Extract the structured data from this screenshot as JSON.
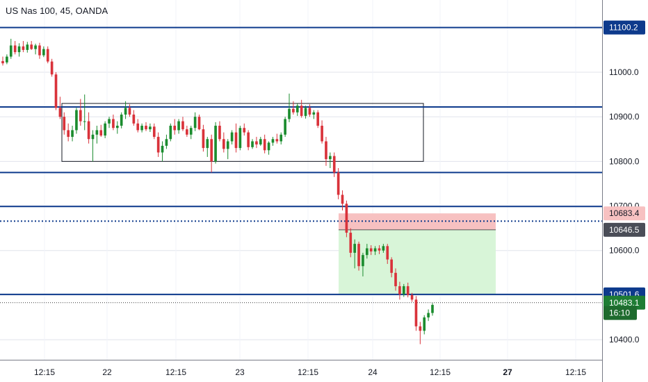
{
  "header": {
    "title": "US Nas 100, 45, OANDA"
  },
  "colors": {
    "up": "#26a69a",
    "up_candle": "#1b8c2e",
    "down": "#d9323a",
    "level_line": "#0d3a8c",
    "grid": "#e0e3eb",
    "stop_zone": "#f7c1c1",
    "target_zone": "#d8f5d8",
    "box": "#131722",
    "countdown_bg": "#1e6b2e"
  },
  "chart_data": {
    "type": "candlestick",
    "ylim": [
      10355,
      11162
    ],
    "price_ticks": [
      "10400.0",
      "10500.0",
      "10600.0",
      "10700.0",
      "10800.0",
      "10900.0",
      "11000.0"
    ],
    "time_ticks": [
      "12:15",
      "22",
      "12:15",
      "23",
      "12:15",
      "24",
      "12:15",
      "27",
      "12:15"
    ],
    "tags": [
      {
        "label": "11100.2",
        "value": 11100.2,
        "style": "blue"
      },
      {
        "label": "10683.4",
        "value": 10683.4,
        "style": "red"
      },
      {
        "label": "10646.5",
        "value": 10646.5,
        "style": "gray"
      },
      {
        "label": "10501.6",
        "value": 10501.6,
        "style": "blue"
      },
      {
        "label": "10483.1",
        "value": 10483.1,
        "style": "green"
      },
      {
        "label": "16:10",
        "value": 10460,
        "style": "countdown"
      }
    ],
    "horizontal_levels": [
      11100.2,
      10922,
      10775,
      10699,
      10501.6
    ],
    "dotted_levels": [
      10666,
      10483.1
    ],
    "range_box": {
      "top": 10930,
      "bottom": 10800
    },
    "position": {
      "entry": 10646.5,
      "stop": 10683.4,
      "target": 10501.6
    },
    "candles": [
      [
        11025,
        11035,
        11015,
        11020
      ],
      [
        11022,
        11040,
        11018,
        11035
      ],
      [
        11035,
        11075,
        11030,
        11060
      ],
      [
        11060,
        11070,
        11040,
        11045
      ],
      [
        11045,
        11065,
        11035,
        11058
      ],
      [
        11058,
        11070,
        11045,
        11050
      ],
      [
        11050,
        11068,
        11044,
        11062
      ],
      [
        11062,
        11070,
        11050,
        11052
      ],
      [
        11052,
        11064,
        11040,
        11060
      ],
      [
        11060,
        11066,
        11030,
        11038
      ],
      [
        11038,
        11058,
        11034,
        11052
      ],
      [
        11052,
        11058,
        11020,
        11024
      ],
      [
        11024,
        11030,
        10990,
        10995
      ],
      [
        10995,
        11000,
        10915,
        10920
      ],
      [
        10920,
        10945,
        10895,
        10900
      ],
      [
        10900,
        10910,
        10860,
        10870
      ],
      [
        10870,
        10885,
        10845,
        10855
      ],
      [
        10855,
        10880,
        10845,
        10870
      ],
      [
        10870,
        10920,
        10862,
        10915
      ],
      [
        10915,
        10940,
        10880,
        10890
      ],
      [
        10890,
        10950,
        10870,
        10890
      ],
      [
        10890,
        10910,
        10840,
        10850
      ],
      [
        10850,
        10870,
        10800,
        10860
      ],
      [
        10860,
        10880,
        10840,
        10870
      ],
      [
        10870,
        10882,
        10855,
        10858
      ],
      [
        10858,
        10890,
        10852,
        10885
      ],
      [
        10885,
        10900,
        10875,
        10895
      ],
      [
        10895,
        10905,
        10870,
        10875
      ],
      [
        10875,
        10890,
        10862,
        10880
      ],
      [
        10880,
        10910,
        10874,
        10905
      ],
      [
        10905,
        10935,
        10895,
        10920
      ],
      [
        10920,
        10928,
        10900,
        10905
      ],
      [
        10905,
        10915,
        10880,
        10885
      ],
      [
        10885,
        10895,
        10865,
        10870
      ],
      [
        10870,
        10885,
        10865,
        10880
      ],
      [
        10880,
        10888,
        10868,
        10872
      ],
      [
        10872,
        10885,
        10866,
        10878
      ],
      [
        10878,
        10885,
        10850,
        10855
      ],
      [
        10855,
        10865,
        10810,
        10820
      ],
      [
        10820,
        10845,
        10800,
        10835
      ],
      [
        10835,
        10860,
        10828,
        10850
      ],
      [
        10850,
        10885,
        10845,
        10880
      ],
      [
        10880,
        10895,
        10860,
        10870
      ],
      [
        10870,
        10895,
        10862,
        10890
      ],
      [
        10890,
        10900,
        10868,
        10872
      ],
      [
        10872,
        10880,
        10855,
        10860
      ],
      [
        10860,
        10880,
        10850,
        10875
      ],
      [
        10875,
        10910,
        10868,
        10900
      ],
      [
        10900,
        10905,
        10870,
        10872
      ],
      [
        10872,
        10882,
        10822,
        10830
      ],
      [
        10830,
        10855,
        10810,
        10850
      ],
      [
        10850,
        10860,
        10775,
        10800
      ],
      [
        10800,
        10888,
        10795,
        10880
      ],
      [
        10880,
        10890,
        10845,
        10850
      ],
      [
        10850,
        10865,
        10820,
        10828
      ],
      [
        10828,
        10850,
        10805,
        10845
      ],
      [
        10845,
        10870,
        10838,
        10865
      ],
      [
        10865,
        10885,
        10820,
        10830
      ],
      [
        10830,
        10880,
        10825,
        10875
      ],
      [
        10875,
        10885,
        10858,
        10865
      ],
      [
        10865,
        10870,
        10825,
        10832
      ],
      [
        10832,
        10850,
        10828,
        10845
      ],
      [
        10845,
        10855,
        10830,
        10838
      ],
      [
        10838,
        10855,
        10835,
        10850
      ],
      [
        10850,
        10860,
        10818,
        10825
      ],
      [
        10825,
        10845,
        10815,
        10842
      ],
      [
        10842,
        10855,
        10835,
        10850
      ],
      [
        10850,
        10862,
        10840,
        10845
      ],
      [
        10845,
        10865,
        10838,
        10860
      ],
      [
        10860,
        10900,
        10855,
        10895
      ],
      [
        10895,
        10952,
        10888,
        10918
      ],
      [
        10918,
        10935,
        10905,
        10910
      ],
      [
        10910,
        10930,
        10902,
        10925
      ],
      [
        10925,
        10938,
        10898,
        10902
      ],
      [
        10902,
        10925,
        10896,
        10920
      ],
      [
        10920,
        10928,
        10900,
        10905
      ],
      [
        10905,
        10915,
        10895,
        10910
      ],
      [
        10910,
        10915,
        10875,
        10880
      ],
      [
        10880,
        10892,
        10840,
        10845
      ],
      [
        10845,
        10855,
        10790,
        10805
      ],
      [
        10805,
        10820,
        10785,
        10812
      ],
      [
        10812,
        10820,
        10765,
        10775
      ],
      [
        10775,
        10785,
        10715,
        10725
      ],
      [
        10725,
        10735,
        10690,
        10705
      ],
      [
        10705,
        10712,
        10630,
        10640
      ],
      [
        10640,
        10650,
        10585,
        10595
      ],
      [
        10595,
        10625,
        10560,
        10615
      ],
      [
        10615,
        10620,
        10555,
        10565
      ],
      [
        10565,
        10595,
        10542,
        10590
      ],
      [
        10590,
        10615,
        10582,
        10605
      ],
      [
        10605,
        10612,
        10590,
        10598
      ],
      [
        10598,
        10610,
        10590,
        10605
      ],
      [
        10605,
        10612,
        10592,
        10600
      ],
      [
        10600,
        10615,
        10595,
        10610
      ],
      [
        10610,
        10615,
        10570,
        10580
      ],
      [
        10580,
        10585,
        10540,
        10550
      ],
      [
        10550,
        10560,
        10510,
        10520
      ],
      [
        10520,
        10530,
        10490,
        10502
      ],
      [
        10502,
        10525,
        10496,
        10520
      ],
      [
        10520,
        10528,
        10495,
        10500
      ],
      [
        10500,
        10505,
        10485,
        10490
      ],
      [
        10490,
        10498,
        10420,
        10430
      ],
      [
        10430,
        10440,
        10390,
        10420
      ],
      [
        10420,
        10455,
        10412,
        10450
      ],
      [
        10450,
        10468,
        10442,
        10460
      ],
      [
        10460,
        10482,
        10454,
        10478
      ]
    ]
  }
}
